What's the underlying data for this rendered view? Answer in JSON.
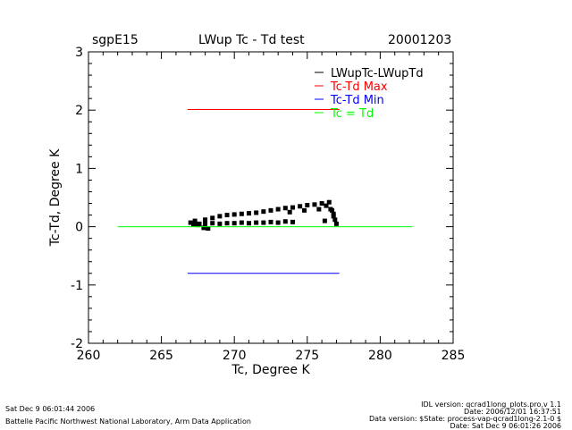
{
  "header": {
    "site": "sgpE15",
    "title": "LWup Tc - Td test",
    "date": "20001203"
  },
  "chart_data": {
    "type": "scatter",
    "title": "LWup Tc - Td test",
    "xlabel": "Tc, Degree K",
    "ylabel": "Tc-Td, Degree K",
    "xlim": [
      260,
      285
    ],
    "ylim": [
      -2,
      3
    ],
    "xticks": [
      260,
      265,
      270,
      275,
      280,
      285
    ],
    "yticks": [
      -2,
      -1,
      0,
      1,
      2,
      3
    ],
    "legend_position": "top-right",
    "series": [
      {
        "name": "LWupTc-LWupTd",
        "color": "#000000",
        "kind": "points",
        "points": [
          [
            267.0,
            0.07
          ],
          [
            267.3,
            0.1
          ],
          [
            267.6,
            0.05
          ],
          [
            268.0,
            0.12
          ],
          [
            268.5,
            0.15
          ],
          [
            269.0,
            0.18
          ],
          [
            269.5,
            0.2
          ],
          [
            270.0,
            0.21
          ],
          [
            270.5,
            0.22
          ],
          [
            271.0,
            0.23
          ],
          [
            271.5,
            0.24
          ],
          [
            272.0,
            0.26
          ],
          [
            272.5,
            0.28
          ],
          [
            273.0,
            0.3
          ],
          [
            273.5,
            0.32
          ],
          [
            274.0,
            0.33
          ],
          [
            274.5,
            0.35
          ],
          [
            275.0,
            0.37
          ],
          [
            275.5,
            0.38
          ],
          [
            276.0,
            0.4
          ],
          [
            276.3,
            0.36
          ],
          [
            276.6,
            0.3
          ],
          [
            276.8,
            0.22
          ],
          [
            276.9,
            0.12
          ],
          [
            277.0,
            0.05
          ],
          [
            276.8,
            0.18
          ],
          [
            276.7,
            0.28
          ],
          [
            276.5,
            0.42
          ],
          [
            276.2,
            0.1
          ],
          [
            275.8,
            0.3
          ],
          [
            274.8,
            0.28
          ],
          [
            273.8,
            0.25
          ],
          [
            267.2,
            0.04
          ],
          [
            268.0,
            0.05
          ],
          [
            269.0,
            0.05
          ],
          [
            270.0,
            0.06
          ],
          [
            271.0,
            0.06
          ],
          [
            272.0,
            0.07
          ],
          [
            273.0,
            0.07
          ],
          [
            274.0,
            0.08
          ],
          [
            267.5,
            0.03
          ],
          [
            268.5,
            0.06
          ],
          [
            269.5,
            0.06
          ],
          [
            270.5,
            0.07
          ],
          [
            271.5,
            0.07
          ],
          [
            272.5,
            0.08
          ],
          [
            273.5,
            0.09
          ],
          [
            267.9,
            -0.02
          ],
          [
            268.2,
            -0.03
          ]
        ]
      },
      {
        "name": "Tc-Td Max",
        "color": "#ff0000",
        "kind": "line",
        "points": [
          [
            266.8,
            2.01
          ],
          [
            277.2,
            2.01
          ]
        ]
      },
      {
        "name": "Tc-Td Min",
        "color": "#0000ff",
        "kind": "line",
        "points": [
          [
            266.8,
            -0.8
          ],
          [
            277.2,
            -0.8
          ]
        ]
      },
      {
        "name": "Tc = Td",
        "color": "#00ff00",
        "kind": "line",
        "points": [
          [
            262.0,
            0.0
          ],
          [
            282.2,
            0.0
          ]
        ]
      }
    ]
  },
  "footer": {
    "left_date": "Sat Dec  9 06:01:44 2006",
    "left_org": "Battelle Pacific Northwest National Laboratory, Arm Data Application",
    "right_lines": [
      "IDL version: qcrad1long_plots.pro,v 1.1",
      "Date: 2006/12/01 16:37:51",
      "Data version: $State: process-vap-qcrad1long-2.1-0 $",
      "Date: Sat Dec  9 06:01:26 2006"
    ]
  }
}
